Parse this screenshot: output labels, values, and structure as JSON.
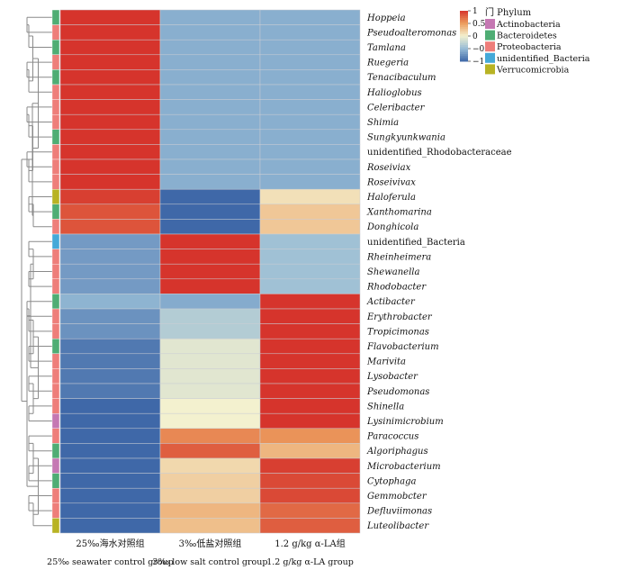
{
  "chart_data": {
    "type": "heatmap",
    "title": "",
    "columns": [
      "25‰海水对照组",
      "3‰低盐对照组",
      "1.2 g/kg α-LA组"
    ],
    "columns_en": [
      "25‰ seawater control group",
      "3‰ low salt control group",
      "1.2 g/kg α-LA group"
    ],
    "rows": [
      {
        "name": "Hoppeia",
        "phylum": "Bacteroidetes",
        "values": [
          1.15,
          -0.58,
          -0.58
        ]
      },
      {
        "name": "Pseudoalteromonas",
        "phylum": "Proteobacteria",
        "values": [
          1.15,
          -0.58,
          -0.58
        ]
      },
      {
        "name": "Tamlana",
        "phylum": "Bacteroidetes",
        "values": [
          1.15,
          -0.58,
          -0.58
        ]
      },
      {
        "name": "Ruegeria",
        "phylum": "Proteobacteria",
        "values": [
          1.15,
          -0.58,
          -0.58
        ]
      },
      {
        "name": "Tenacibaculum",
        "phylum": "Bacteroidetes",
        "values": [
          1.15,
          -0.58,
          -0.58
        ]
      },
      {
        "name": "Halioglobus",
        "phylum": "Proteobacteria",
        "values": [
          1.15,
          -0.58,
          -0.58
        ]
      },
      {
        "name": "Celeribacter",
        "phylum": "Proteobacteria",
        "values": [
          1.15,
          -0.58,
          -0.58
        ]
      },
      {
        "name": "Shimia",
        "phylum": "Proteobacteria",
        "values": [
          1.15,
          -0.58,
          -0.58
        ]
      },
      {
        "name": "Sungkyunkwania",
        "phylum": "Bacteroidetes",
        "values": [
          1.15,
          -0.58,
          -0.58
        ]
      },
      {
        "name": "unidentified_Rhodobacteraceae",
        "phylum": "Proteobacteria",
        "values": [
          1.15,
          -0.58,
          -0.58
        ]
      },
      {
        "name": "Roseiviax",
        "phylum": "Proteobacteria",
        "values": [
          1.15,
          -0.58,
          -0.58
        ]
      },
      {
        "name": "Roseivivax",
        "phylum": "Proteobacteria",
        "values": [
          1.15,
          -0.58,
          -0.58
        ]
      },
      {
        "name": "Haloferula",
        "phylum": "Verrucomicrobia",
        "values": [
          0.95,
          -1.05,
          0.1
        ]
      },
      {
        "name": "Xanthomarina",
        "phylum": "Bacteroidetes",
        "values": [
          0.85,
          -1.1,
          0.25
        ]
      },
      {
        "name": "Donghicola",
        "phylum": "Proteobacteria",
        "values": [
          0.85,
          -1.1,
          0.25
        ]
      },
      {
        "name": "unidentified_Bacteria",
        "phylum": "unidentified_Bacteria",
        "values": [
          -0.7,
          1.15,
          -0.45
        ]
      },
      {
        "name": "Rheinheimera",
        "phylum": "Proteobacteria",
        "values": [
          -0.7,
          1.15,
          -0.45
        ]
      },
      {
        "name": "Shewanella",
        "phylum": "Proteobacteria",
        "values": [
          -0.7,
          1.15,
          -0.45
        ]
      },
      {
        "name": "Rhodobacter",
        "phylum": "Proteobacteria",
        "values": [
          -0.7,
          1.15,
          -0.45
        ]
      },
      {
        "name": "Actibacter",
        "phylum": "Bacteroidetes",
        "values": [
          -0.55,
          -0.6,
          1.15
        ]
      },
      {
        "name": "Erythrobacter",
        "phylum": "Proteobacteria",
        "values": [
          -0.75,
          -0.35,
          1.15
        ]
      },
      {
        "name": "Tropicimonas",
        "phylum": "Proteobacteria",
        "values": [
          -0.75,
          -0.35,
          1.15
        ]
      },
      {
        "name": "Flavobacterium",
        "phylum": "Bacteroidetes",
        "values": [
          -0.9,
          -0.1,
          1.15
        ]
      },
      {
        "name": "Marivita",
        "phylum": "Proteobacteria",
        "values": [
          -0.9,
          -0.1,
          1.15
        ]
      },
      {
        "name": "Lysobacter",
        "phylum": "Proteobacteria",
        "values": [
          -0.9,
          -0.1,
          1.15
        ]
      },
      {
        "name": "Pseudomonas",
        "phylum": "Proteobacteria",
        "values": [
          -0.9,
          -0.1,
          1.15
        ]
      },
      {
        "name": "Shinella",
        "phylum": "Proteobacteria",
        "values": [
          -1.0,
          0.0,
          1.05
        ]
      },
      {
        "name": "Lysinimicrobium",
        "phylum": "Actinobacteria",
        "values": [
          -1.0,
          0.0,
          1.05
        ]
      },
      {
        "name": "Paracoccus",
        "phylum": "Proteobacteria",
        "values": [
          -1.15,
          0.6,
          0.55
        ]
      },
      {
        "name": "Algoriphagus",
        "phylum": "Bacteroidetes",
        "values": [
          -1.15,
          0.8,
          0.35
        ]
      },
      {
        "name": "Microbacterium",
        "phylum": "Actinobacteria",
        "values": [
          -1.1,
          0.15,
          0.95
        ]
      },
      {
        "name": "Cytophaga",
        "phylum": "Bacteroidetes",
        "values": [
          -1.1,
          0.2,
          0.9
        ]
      },
      {
        "name": "Gemmobcter",
        "phylum": "Proteobacteria",
        "values": [
          -1.1,
          0.2,
          0.9
        ]
      },
      {
        "name": "Defluviimonas",
        "phylum": "Proteobacteria",
        "values": [
          -1.1,
          0.35,
          0.75
        ]
      },
      {
        "name": "Luteolibacter",
        "phylum": "Verrucomicrobia",
        "values": [
          -1.1,
          0.3,
          0.8
        ]
      }
    ],
    "color_scale": {
      "min": -1,
      "max": 1,
      "ticks": [
        "1",
        "0.5",
        "0",
        "−0.5",
        "−1"
      ],
      "stops": [
        {
          "value": -1.0,
          "color": "#3f68a8"
        },
        {
          "value": -0.5,
          "color": "#97bcd6"
        },
        {
          "value": 0.0,
          "color": "#f3f1cf"
        },
        {
          "value": 0.5,
          "color": "#ec9d5e"
        },
        {
          "value": 1.0,
          "color": "#d6342c"
        }
      ]
    },
    "legend": {
      "title": "门 Phylum",
      "placement": "top-right",
      "entries": [
        {
          "name": "Actinobacteria",
          "color": "#c578b3"
        },
        {
          "name": "Bacteroidetes",
          "color": "#4fad74"
        },
        {
          "name": "Proteobacteria",
          "color": "#ee7e7a"
        },
        {
          "name": "unidentified_Bacteria",
          "color": "#45a9d8"
        },
        {
          "name": "Verrucomicrobia",
          "color": "#b8b324"
        }
      ]
    },
    "dendrogram": "rows",
    "grid": true
  }
}
